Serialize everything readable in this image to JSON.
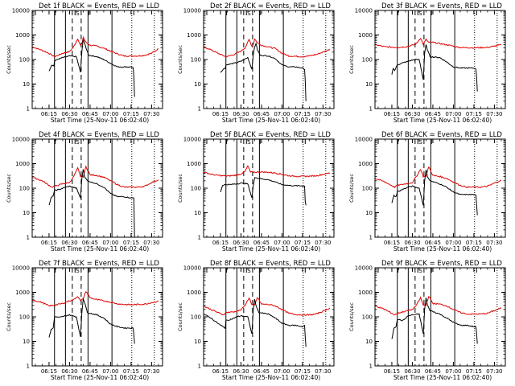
{
  "figure": {
    "background": "#ffffff",
    "black_color": "#000000",
    "red_color": "#e00000"
  },
  "chart_data": {
    "type": "line",
    "layout": "3x3 grid",
    "shared": {
      "xlabel": "Start Time (25-Nov-11 06:02:40)",
      "ylabel": "Counts/sec",
      "x_tick_labels": [
        "06:15",
        "06:30",
        "06:45",
        "07:00",
        "07:15",
        "07:30"
      ],
      "x_ticks_minutes_after_0600": [
        15,
        30,
        45,
        60,
        75,
        90
      ],
      "xlim_minutes_after_0600": [
        2.67,
        98
      ],
      "y_scale": "log",
      "y_tick_labels": [
        "1",
        "10",
        "100",
        "1000",
        "10000"
      ],
      "y_ticks": [
        1,
        10,
        100,
        1000,
        10000
      ],
      "ylim": [
        1,
        10000
      ],
      "vertical_lines": [
        {
          "minute": 19,
          "style": "solid"
        },
        {
          "minute": 27,
          "style": "solid"
        },
        {
          "minute": 32,
          "style": "dashed"
        },
        {
          "minute": 38.5,
          "style": "dashed"
        },
        {
          "minute": 43.5,
          "style": "solid"
        },
        {
          "minute": 61,
          "style": "solid"
        },
        {
          "minute": 75.5,
          "style": "dotted"
        },
        {
          "minute": 92,
          "style": "dotted"
        }
      ],
      "interval_markers": [
        {
          "label": "E",
          "minute": 5
        },
        {
          "label": "I",
          "minute": 19.5
        },
        {
          "label": "S",
          "minute": 34
        },
        {
          "label": "I",
          "minute": 44
        },
        {
          "label": "E",
          "minute": 77
        }
      ]
    },
    "panels": [
      {
        "title": "Det 1f BLACK = Events, RED = LLD",
        "series": [
          {
            "name": "LLD",
            "color": "red",
            "x": [
              2.67,
              8,
              14,
              19,
              25,
              30,
              33,
              36,
              38,
              39,
              40,
              42,
              45,
              50,
              55,
              60,
              65,
              70,
              75,
              80,
              85,
              90,
              95
            ],
            "values": [
              330,
              260,
              190,
              130,
              180,
              210,
              330,
              700,
              380,
              420,
              820,
              500,
              380,
              350,
              290,
              220,
              170,
              140,
              140,
              140,
              150,
              180,
              270
            ]
          },
          {
            "name": "Events",
            "color": "black",
            "x": [
              15,
              17,
              18.5,
              19,
              21,
              25,
              28,
              30,
              35,
              38,
              39,
              40,
              41,
              42,
              44,
              50,
              55,
              60,
              65,
              70,
              75,
              76.5,
              77,
              77.5
            ],
            "values": [
              35,
              60,
              55,
              85,
              100,
              120,
              130,
              140,
              130,
              30,
              200,
              700,
              450,
              300,
              150,
              130,
              100,
              70,
              50,
              50,
              50,
              45,
              20,
              3
            ]
          }
        ]
      },
      {
        "title": "Det 2f BLACK = Events, RED = LLD",
        "series": [
          {
            "name": "LLD",
            "color": "red",
            "x": [
              2.67,
              8,
              14,
              19,
              25,
              30,
              33,
              36,
              38,
              39,
              40,
              42,
              45,
              50,
              55,
              60,
              65,
              70,
              75,
              80,
              85,
              90,
              95
            ],
            "values": [
              330,
              250,
              170,
              130,
              160,
              220,
              300,
              650,
              350,
              400,
              700,
              480,
              380,
              330,
              280,
              180,
              140,
              135,
              130,
              140,
              160,
              200,
              260
            ]
          },
          {
            "name": "Events",
            "color": "black",
            "x": [
              15,
              17,
              18.5,
              19,
              22,
              27,
              30,
              35,
              38,
              39,
              40,
              41,
              42,
              44,
              50,
              55,
              60,
              65,
              70,
              75,
              76.5,
              77,
              77.5
            ],
            "values": [
              30,
              40,
              45,
              60,
              65,
              75,
              85,
              120,
              40,
              160,
              320,
              450,
              250,
              150,
              140,
              110,
              60,
              50,
              50,
              45,
              40,
              15,
              2
            ]
          }
        ]
      },
      {
        "title": "Det 3f BLACK = Events, RED = LLD",
        "series": [
          {
            "name": "LLD",
            "color": "red",
            "x": [
              2.67,
              10,
              19,
              25,
              30,
              33,
              36,
              38,
              40,
              42,
              45,
              55,
              65,
              75,
              85,
              95
            ],
            "values": [
              400,
              330,
              310,
              330,
              380,
              450,
              750,
              420,
              650,
              500,
              500,
              400,
              310,
              300,
              310,
              400
            ]
          },
          {
            "name": "Events",
            "color": "black",
            "x": [
              15,
              16,
              17,
              19,
              22,
              27,
              30,
              35,
              38,
              39,
              40,
              41,
              43,
              50,
              55,
              60,
              65,
              70,
              75,
              76.5,
              77,
              77.5
            ],
            "values": [
              25,
              45,
              35,
              60,
              70,
              85,
              95,
              100,
              15,
              180,
              400,
              250,
              130,
              120,
              80,
              50,
              45,
              45,
              45,
              40,
              20,
              5
            ]
          }
        ]
      },
      {
        "title": "Det 4f BLACK = Events, RED = LLD",
        "series": [
          {
            "name": "LLD",
            "color": "red",
            "x": [
              2.67,
              10,
              17,
              19,
              25,
              30,
              33,
              36,
              38,
              40,
              42,
              45,
              50,
              55,
              60,
              65,
              70,
              75,
              80,
              85,
              90,
              95
            ],
            "values": [
              280,
              200,
              110,
              120,
              150,
              170,
              300,
              650,
              300,
              300,
              750,
              350,
              330,
              280,
              200,
              140,
              110,
              110,
              110,
              120,
              170,
              220
            ]
          },
          {
            "name": "Events",
            "color": "black",
            "x": [
              15,
              16.5,
              18,
              19,
              23,
              27,
              30,
              35,
              38,
              39,
              40,
              41,
              43,
              50,
              55,
              60,
              65,
              70,
              75,
              77,
              77.5
            ],
            "values": [
              20,
              40,
              50,
              80,
              90,
              110,
              120,
              100,
              40,
              250,
              600,
              300,
              200,
              150,
              110,
              60,
              45,
              45,
              40,
              40,
              1
            ]
          }
        ]
      },
      {
        "title": "Det 5f BLACK = Events, RED = LLD",
        "series": [
          {
            "name": "LLD",
            "color": "red",
            "x": [
              2.67,
              10,
              19,
              25,
              30,
              33,
              35,
              37,
              40,
              45,
              55,
              65,
              75,
              85,
              95
            ],
            "values": [
              450,
              350,
              310,
              330,
              380,
              480,
              800,
              450,
              450,
              460,
              420,
              320,
              300,
              320,
              420
            ]
          },
          {
            "name": "Events",
            "color": "black",
            "x": [
              15,
              16.5,
              19,
              22,
              27,
              30,
              35,
              38,
              39,
              40,
              41,
              43,
              50,
              55,
              60,
              65,
              70,
              75,
              76.5,
              77,
              77.5
            ],
            "values": [
              70,
              130,
              140,
              140,
              150,
              160,
              150,
              40,
              120,
              280,
              270,
              250,
              220,
              180,
              140,
              130,
              125,
              125,
              120,
              30,
              20
            ]
          }
        ]
      },
      {
        "title": "Det 6f BLACK = Events, RED = LLD",
        "series": [
          {
            "name": "LLD",
            "color": "red",
            "x": [
              2.67,
              10,
              17,
              19,
              25,
              30,
              33,
              36,
              38,
              40,
              42,
              45,
              50,
              55,
              60,
              65,
              70,
              75,
              80,
              85,
              90,
              95
            ],
            "values": [
              250,
              180,
              110,
              130,
              150,
              170,
              300,
              600,
              300,
              300,
              750,
              330,
              300,
              250,
              180,
              130,
              110,
              110,
              110,
              120,
              160,
              210
            ]
          },
          {
            "name": "Events",
            "color": "black",
            "x": [
              15,
              16.5,
              18,
              19,
              23,
              27,
              30,
              35,
              38,
              39,
              40,
              41,
              43,
              50,
              55,
              60,
              65,
              70,
              75,
              76.5,
              77,
              77.5
            ],
            "values": [
              25,
              50,
              45,
              70,
              90,
              110,
              120,
              100,
              20,
              200,
              550,
              300,
              200,
              150,
              110,
              70,
              55,
              55,
              55,
              50,
              20,
              8
            ]
          }
        ]
      },
      {
        "title": "Det 7f BLACK = Events, RED = LLD",
        "series": [
          {
            "name": "LLD",
            "color": "red",
            "x": [
              2.67,
              10,
              15,
              19,
              25,
              30,
              33,
              36,
              38,
              40,
              42,
              45,
              50,
              55,
              60,
              65,
              70,
              75,
              80,
              85,
              90,
              95
            ],
            "values": [
              500,
              380,
              280,
              300,
              350,
              450,
              500,
              700,
              450,
              550,
              1100,
              600,
              500,
              450,
              400,
              340,
              320,
              310,
              320,
              330,
              380,
              430
            ]
          },
          {
            "name": "Events",
            "color": "black",
            "x": [
              15,
              16.5,
              18,
              19,
              23,
              27,
              30,
              35,
              38,
              39,
              40,
              41,
              43,
              50,
              55,
              60,
              65,
              70,
              75,
              76.5,
              77,
              77.5
            ],
            "values": [
              15,
              30,
              35,
              100,
              95,
              110,
              120,
              100,
              15,
              150,
              550,
              400,
              150,
              120,
              90,
              50,
              40,
              35,
              35,
              35,
              20,
              8
            ]
          }
        ]
      },
      {
        "title": "Det 8f BLACK = Events, RED = LLD",
        "series": [
          {
            "name": "LLD",
            "color": "red",
            "x": [
              2.67,
              10,
              17,
              19,
              25,
              30,
              33,
              36,
              38,
              40,
              42,
              45,
              50,
              55,
              60,
              65,
              70,
              75,
              80,
              85,
              90,
              95
            ],
            "values": [
              270,
              180,
              120,
              150,
              160,
              190,
              300,
              600,
              300,
              300,
              620,
              330,
              320,
              280,
              200,
              140,
              125,
              120,
              120,
              130,
              170,
              230
            ]
          },
          {
            "name": "Events",
            "color": "black",
            "x": [
              2.67,
              8,
              14,
              18.5,
              19,
              23,
              27,
              30,
              35,
              38,
              39,
              40,
              41,
              43,
              50,
              55,
              60,
              65,
              70,
              75,
              76.5,
              77,
              77.5
            ],
            "values": [
              130,
              90,
              50,
              35,
              70,
              80,
              100,
              110,
              100,
              20,
              200,
              500,
              300,
              150,
              130,
              90,
              55,
              45,
              45,
              40,
              45,
              15,
              6
            ]
          }
        ]
      },
      {
        "title": "Det 9f BLACK = Events, RED = LLD",
        "series": [
          {
            "name": "LLD",
            "color": "red",
            "x": [
              2.67,
              10,
              17,
              19,
              25,
              30,
              33,
              36,
              38,
              40,
              42,
              45,
              50,
              55,
              60,
              65,
              70,
              75,
              80,
              85,
              90,
              95
            ],
            "values": [
              280,
              200,
              120,
              140,
              170,
              200,
              300,
              600,
              300,
              300,
              700,
              350,
              330,
              280,
              200,
              150,
              130,
              130,
              130,
              140,
              180,
              230
            ]
          },
          {
            "name": "Events",
            "color": "black",
            "x": [
              15,
              16.5,
              18,
              19,
              23,
              27,
              30,
              35,
              38,
              39,
              40,
              41,
              43,
              50,
              55,
              60,
              65,
              70,
              75,
              76.5,
              77,
              77.5
            ],
            "values": [
              12,
              35,
              40,
              80,
              70,
              110,
              120,
              130,
              20,
              200,
              600,
              300,
              180,
              130,
              90,
              60,
              45,
              45,
              40,
              40,
              20,
              8
            ]
          }
        ]
      }
    ]
  }
}
